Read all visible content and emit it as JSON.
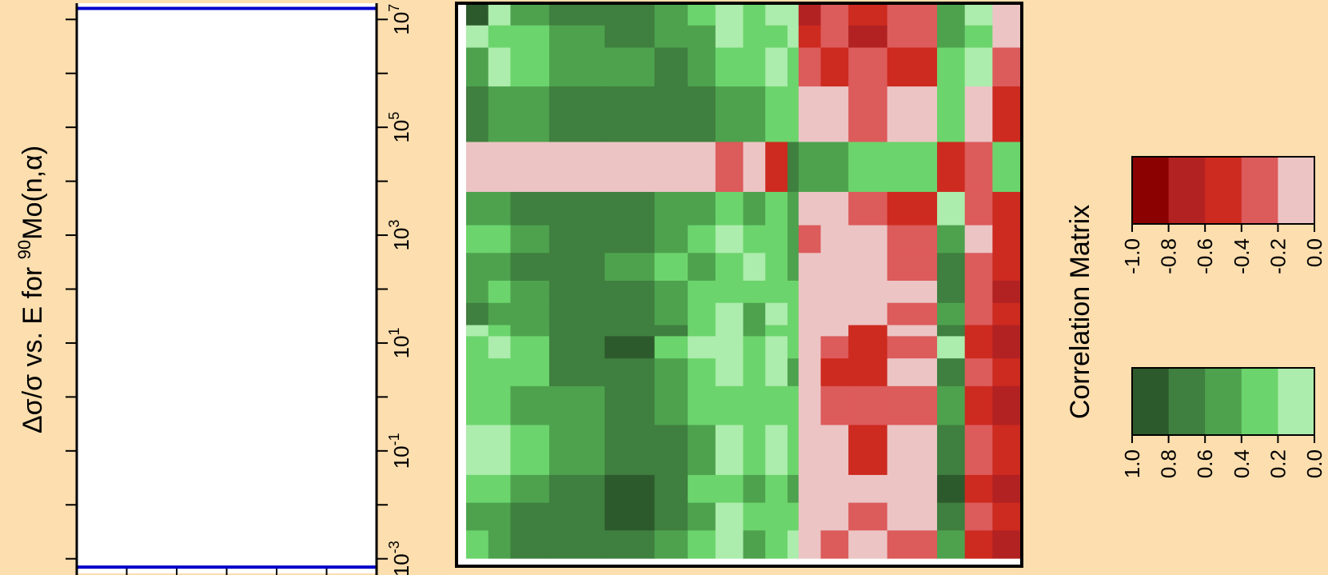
{
  "chart_data": [
    {
      "type": "line",
      "title": "",
      "ylabel_prefix": "Δσ/σ vs. E for ",
      "ylabel_mass": "90",
      "ylabel_suffix": "Mo(n,α)",
      "yscale": "log",
      "yticks": [
        {
          "base": "10",
          "exp": "-3",
          "value": 0.001
        },
        {
          "base": "10",
          "exp": "-1",
          "value": 0.1
        },
        {
          "base": "10",
          "exp": "1",
          "value": 10
        },
        {
          "base": "10",
          "exp": "3",
          "value": 1000
        },
        {
          "base": "10",
          "exp": "5",
          "value": 100000
        },
        {
          "base": "10",
          "exp": "7",
          "value": 10000000
        }
      ],
      "ylim": [
        0.0005,
        20000000
      ],
      "series": [
        {
          "color": "#0000cc",
          "values": [
            0.0007,
            0.0007
          ]
        },
        {
          "color": "#0000cc",
          "values": [
            16000000,
            16000000
          ]
        }
      ]
    },
    {
      "type": "heatmap",
      "legend_title": "Correlation Matrix",
      "palette": {
        "green": [
          "#2d5a2d",
          "#3f7f3f",
          "#4ea24e",
          "#6cd46c",
          "#acecac",
          "#ffffff"
        ],
        "red": [
          "#8b0000",
          "#b22222",
          "#cd2a20",
          "#dc5b5b",
          "#ecc4c4",
          "#ffffff"
        ]
      },
      "legend_negative": {
        "values": [
          -1.0,
          -0.8,
          -0.6,
          -0.4,
          -0.2,
          0.0
        ],
        "labels": [
          "-1.0",
          "-0.8",
          "-0.6",
          "-0.4",
          "-0.2",
          "0.0"
        ]
      },
      "legend_positive": {
        "values": [
          1.0,
          0.8,
          0.6,
          0.4,
          0.2,
          0.0
        ],
        "labels": [
          "1.0",
          "0.8",
          "0.6",
          "0.4",
          "0.2",
          "0.0"
        ]
      },
      "boundaries": [
        0,
        4,
        8,
        15,
        25,
        34,
        40,
        45,
        50,
        54,
        58,
        60,
        64,
        69,
        76,
        85,
        90,
        95,
        100
      ],
      "cells": [
        [
          5,
          1,
          3,
          4,
          4,
          3,
          2,
          1,
          2,
          1,
          1,
          -4,
          -2,
          -3,
          -2,
          3,
          1,
          -1
        ],
        [
          1,
          2,
          2,
          3,
          4,
          3,
          3,
          1,
          2,
          2,
          1,
          -3,
          -2,
          -4,
          -2,
          3,
          2,
          -1
        ],
        [
          3,
          1,
          2,
          3,
          3,
          4,
          3,
          2,
          2,
          1,
          2,
          -2,
          -3,
          -2,
          -3,
          2,
          1,
          -2
        ],
        [
          4,
          3,
          3,
          4,
          4,
          4,
          4,
          3,
          3,
          2,
          2,
          -1,
          -1,
          -2,
          -1,
          2,
          -1,
          -3
        ],
        [
          -1,
          -1,
          -1,
          -1,
          -1,
          -1,
          -1,
          -2,
          -1,
          -3,
          4,
          3,
          3,
          2,
          2,
          -3,
          -2,
          2
        ],
        [
          3,
          3,
          4,
          4,
          4,
          3,
          3,
          2,
          3,
          2,
          3,
          -1,
          -1,
          -2,
          -3,
          1,
          -2,
          -3
        ],
        [
          2,
          2,
          3,
          4,
          4,
          3,
          2,
          1,
          2,
          2,
          3,
          -2,
          -1,
          -1,
          -2,
          3,
          -1,
          -3
        ],
        [
          3,
          3,
          4,
          4,
          3,
          2,
          3,
          2,
          1,
          2,
          3,
          -1,
          -1,
          -1,
          -2,
          4,
          -2,
          -3
        ],
        [
          3,
          2,
          3,
          4,
          4,
          3,
          2,
          2,
          2,
          2,
          2,
          -1,
          -1,
          -1,
          -1,
          4,
          -2,
          -4
        ],
        [
          4,
          3,
          3,
          4,
          4,
          3,
          2,
          1,
          3,
          1,
          2,
          -1,
          -1,
          -1,
          -2,
          3,
          -2,
          -3
        ],
        [
          1,
          2,
          3,
          4,
          4,
          4,
          2,
          1,
          3,
          2,
          2,
          -1,
          -1,
          -3,
          -1,
          4,
          -3,
          -4
        ],
        [
          2,
          1,
          2,
          4,
          5,
          2,
          1,
          1,
          2,
          1,
          2,
          -1,
          -2,
          -3,
          -2,
          1,
          -3,
          -4
        ],
        [
          2,
          2,
          2,
          4,
          4,
          3,
          2,
          1,
          2,
          1,
          3,
          -1,
          -3,
          -3,
          -1,
          4,
          -2,
          -3
        ],
        [
          2,
          2,
          3,
          3,
          4,
          3,
          2,
          2,
          2,
          2,
          2,
          -1,
          -2,
          -2,
          -2,
          3,
          -3,
          -4
        ],
        [
          1,
          1,
          2,
          3,
          4,
          4,
          3,
          1,
          2,
          1,
          2,
          -1,
          -1,
          -3,
          -1,
          4,
          -2,
          -3
        ],
        [
          2,
          2,
          3,
          4,
          5,
          4,
          2,
          2,
          3,
          2,
          3,
          -1,
          -1,
          -1,
          -1,
          5,
          -3,
          -4
        ],
        [
          3,
          3,
          4,
          4,
          5,
          4,
          3,
          1,
          2,
          2,
          2,
          -1,
          -1,
          -2,
          -1,
          4,
          -2,
          -3
        ],
        [
          2,
          3,
          4,
          4,
          4,
          3,
          2,
          1,
          3,
          2,
          1,
          -1,
          -2,
          -1,
          -2,
          3,
          -3,
          -4
        ]
      ]
    }
  ]
}
